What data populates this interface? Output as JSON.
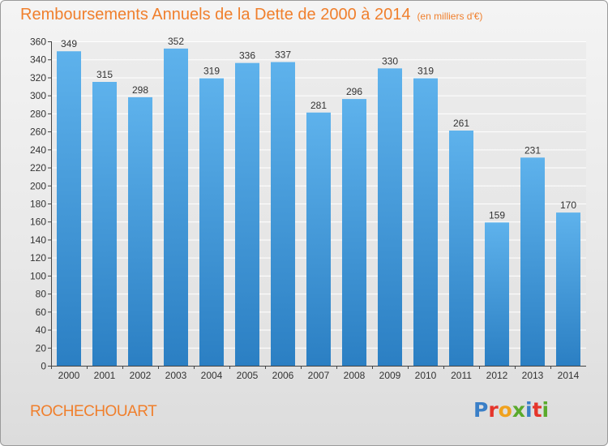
{
  "title": "Remboursements Annuels de la Dette de 2000 à 2014",
  "subtitle": "(en milliers d'€)",
  "commune": "ROCHECHOUART",
  "logo": {
    "text": "Proxiti",
    "letters": [
      {
        "char": "P",
        "color": "#3a7fc7"
      },
      {
        "char": "r",
        "color": "#e5352b"
      },
      {
        "char": "o",
        "color": "#f0a21e"
      },
      {
        "char": "x",
        "color": "#5aaa2c"
      },
      {
        "char": "i",
        "color": "#3a7fc7"
      },
      {
        "char": "t",
        "color": "#e5352b"
      },
      {
        "char": "i",
        "color": "#5aaa2c"
      }
    ]
  },
  "colors": {
    "accent": "#f07f2c",
    "bar_light": "#5eb2ec",
    "bar_dark": "#2b7fc3"
  },
  "chart_data": {
    "type": "bar",
    "categories": [
      "2000",
      "2001",
      "2002",
      "2003",
      "2004",
      "2005",
      "2006",
      "2007",
      "2008",
      "2009",
      "2010",
      "2011",
      "2012",
      "2013",
      "2014"
    ],
    "values": [
      349,
      315,
      298,
      352,
      319,
      336,
      337,
      281,
      296,
      330,
      319,
      261,
      159,
      231,
      170
    ],
    "ylim": [
      0,
      360
    ],
    "yticks": [
      0,
      20,
      40,
      60,
      80,
      100,
      120,
      140,
      160,
      180,
      200,
      220,
      240,
      260,
      280,
      300,
      320,
      340,
      360
    ],
    "grid": true,
    "xlabel": "",
    "ylabel": ""
  }
}
